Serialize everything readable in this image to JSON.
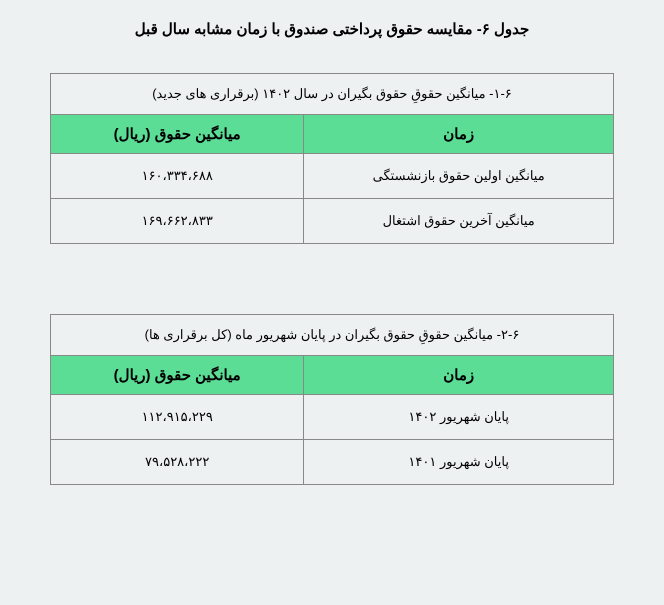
{
  "main_title": "جدول ۶- مقایسه حقوق پرداختی صندوق با زمان مشابه سال قبل",
  "table1": {
    "caption": "۱-۶- میانگین حقوقِ حقوق بگیران در سال ۱۴۰۲ (برقراری های جدید)",
    "headers": {
      "time": "زمان",
      "value": "میانگین حقوق (ریال)"
    },
    "rows": [
      {
        "time": "میانگین اولین حقوق بازنشستگی",
        "value": "۱۶۰،۳۳۴،۶۸۸"
      },
      {
        "time": "میانگین آخرین حقوق اشتغال",
        "value": "۱۶۹،۶۶۲،۸۳۳"
      }
    ],
    "style": {
      "header_bg": "#5cdd96",
      "border_color": "#888888",
      "cell_bg": "#edf1f2",
      "header_fontsize": 15,
      "cell_fontsize": 13
    }
  },
  "table2": {
    "caption": "۲-۶- میانگین حقوقِ حقوق بگیران در پایان شهریور ماه (کل برقراری ها)",
    "headers": {
      "time": "زمان",
      "value": "میانگین حقوق (ریال)"
    },
    "rows": [
      {
        "time": "پایان شهریور ۱۴۰۲",
        "value": "۱۱۲،۹۱۵،۲۲۹"
      },
      {
        "time": "پایان شهریور ۱۴۰۱",
        "value": "۷۹،۵۲۸،۲۲۲"
      }
    ],
    "style": {
      "header_bg": "#5cdd96",
      "border_color": "#888888",
      "cell_bg": "#edf1f2",
      "header_fontsize": 15,
      "cell_fontsize": 13
    }
  },
  "page_style": {
    "background_color": "#edf1f2",
    "text_color": "#000000"
  }
}
